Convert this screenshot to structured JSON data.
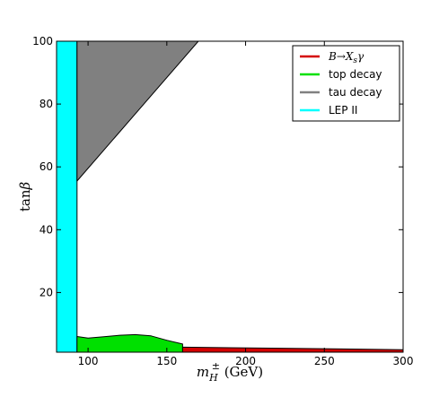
{
  "chart_data": {
    "type": "area",
    "xlabel": "m_H^± (GeV)",
    "ylabel": "tanβ",
    "xlim": [
      80,
      300
    ],
    "ylim": [
      1,
      100
    ],
    "x_ticks": [
      100,
      150,
      200,
      250,
      300
    ],
    "y_ticks": [
      20,
      40,
      60,
      80,
      100
    ],
    "grid": false,
    "legend_position": "top-right",
    "legend": [
      {
        "label": "B→X_sγ",
        "color": "#d40000"
      },
      {
        "label": "top decay",
        "color": "#00e000"
      },
      {
        "label": "tau decay",
        "color": "#808080"
      },
      {
        "label": "LEP II",
        "color": "#00ffff"
      }
    ],
    "series": [
      {
        "name": "B→X_sγ",
        "color": "#d40000",
        "polygon": [
          [
            160,
            1.0
          ],
          [
            300,
            1.0
          ],
          [
            300,
            1.8
          ],
          [
            230,
            2.2
          ],
          [
            160,
            2.6
          ]
        ]
      },
      {
        "name": "top decay",
        "color": "#00e000",
        "polygon": [
          [
            93,
            1.0
          ],
          [
            160,
            1.0
          ],
          [
            160,
            3.6
          ],
          [
            150,
            4.8
          ],
          [
            140,
            6.2
          ],
          [
            130,
            6.6
          ],
          [
            120,
            6.4
          ],
          [
            110,
            5.9
          ],
          [
            100,
            5.5
          ],
          [
            93,
            6.0
          ]
        ]
      },
      {
        "name": "tau decay",
        "color": "#808080",
        "polygon": [
          [
            93,
            55.5
          ],
          [
            93,
            100
          ],
          [
            170,
            100
          ]
        ]
      },
      {
        "name": "LEP II",
        "color": "#00ffff",
        "polygon": [
          [
            80,
            1
          ],
          [
            93,
            1
          ],
          [
            93,
            100
          ],
          [
            80,
            100
          ]
        ]
      }
    ]
  }
}
